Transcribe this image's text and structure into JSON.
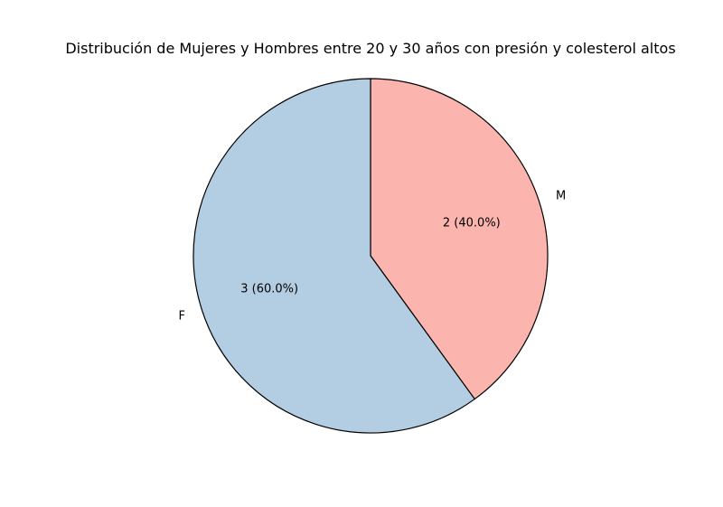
{
  "chart_data": {
    "type": "pie",
    "title": "Distribución de Mujeres y Hombres entre 20 y 30 años con presión y colesterol altos",
    "start_angle_deg": 90,
    "direction": "clockwise",
    "legend": "none",
    "slices": [
      {
        "label": "M",
        "value": 2,
        "percent": 40.0,
        "value_label": "2 (40.0%)",
        "color": "#fbb4ae"
      },
      {
        "label": "F",
        "value": 3,
        "percent": 60.0,
        "value_label": "3 (60.0%)",
        "color": "#b3cde3"
      }
    ]
  }
}
